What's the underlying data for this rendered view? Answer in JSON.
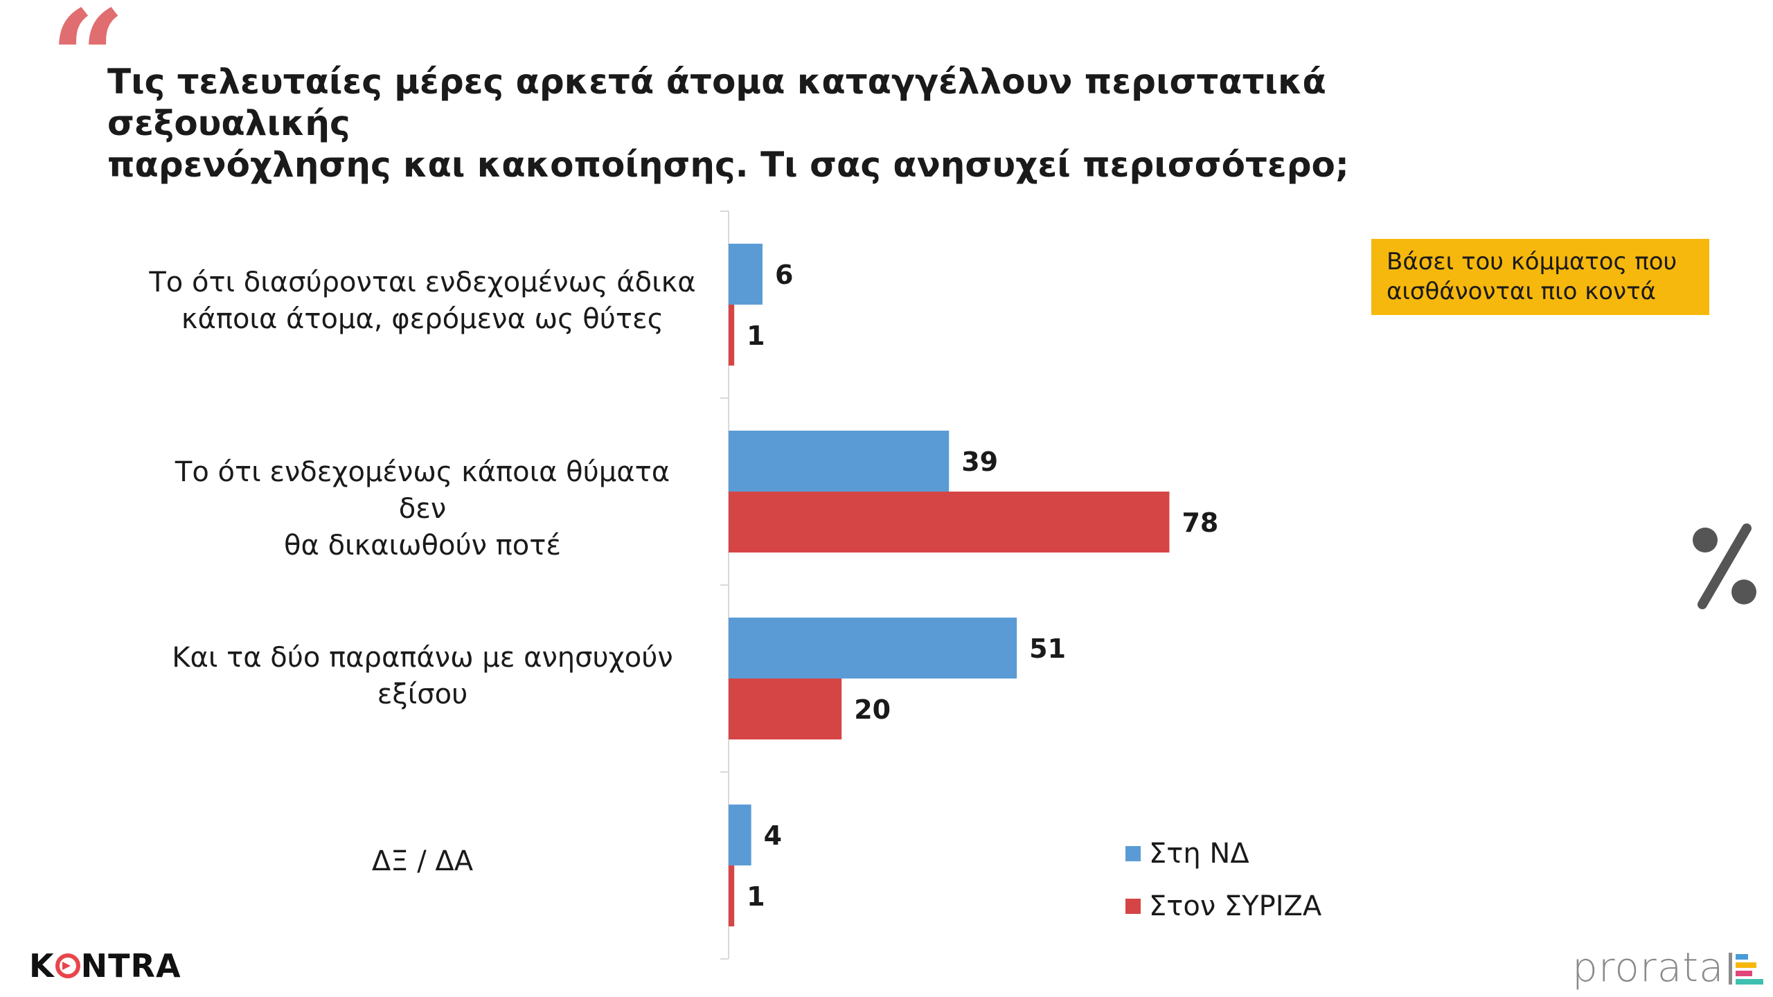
{
  "question": {
    "line1": "Τις τελευταίες μέρες αρκετά άτομα καταγγέλλουν περιστατικά σεξουαλικής",
    "line2": "παρενόχλησης και κακοποίησης. Τι σας ανησυχεί περισσότερο;"
  },
  "note": {
    "line1": "Βάσει του κόμματος που",
    "line2": "αισθάνονται πιο κοντά"
  },
  "percent_symbol": "%",
  "logos": {
    "left_text": "KONTRA",
    "right_text": "prorata"
  },
  "colors": {
    "nd": "#5b9bd5",
    "syriza": "#d64545",
    "note_bg": "#f6b80c",
    "quote": "#e06d6f"
  },
  "chart_data": {
    "type": "bar",
    "orientation": "horizontal",
    "categories": [
      "Το ότι διασύρονται ενδεχομένως άδικα κάποια άτομα, φερόμενα ως θύτες",
      "Το ότι ενδεχομένως κάποια θύματα δεν θα δικαιωθούν ποτέ",
      "Και τα δύο παραπάνω με ανησυχούν εξίσου",
      "ΔΞ / ΔΑ"
    ],
    "category_lines": [
      [
        "Το ότι διασύρονται ενδεχομένως άδικα",
        "κάποια άτομα, φερόμενα ως θύτες"
      ],
      [
        "Το ότι ενδεχομένως κάποια θύματα δεν",
        "θα δικαιωθούν ποτέ"
      ],
      [
        "Και τα δύο παραπάνω με ανησυχούν",
        "εξίσου"
      ],
      [
        "ΔΞ / ΔΑ"
      ]
    ],
    "series": [
      {
        "name": "Στη ΝΔ",
        "values": [
          6,
          39,
          51,
          4
        ]
      },
      {
        "name": "Στον ΣΥΡΙΖΑ",
        "values": [
          1,
          78,
          20,
          1
        ]
      }
    ],
    "data_labels": true,
    "legend_position": "bottom-right",
    "grid": false
  }
}
